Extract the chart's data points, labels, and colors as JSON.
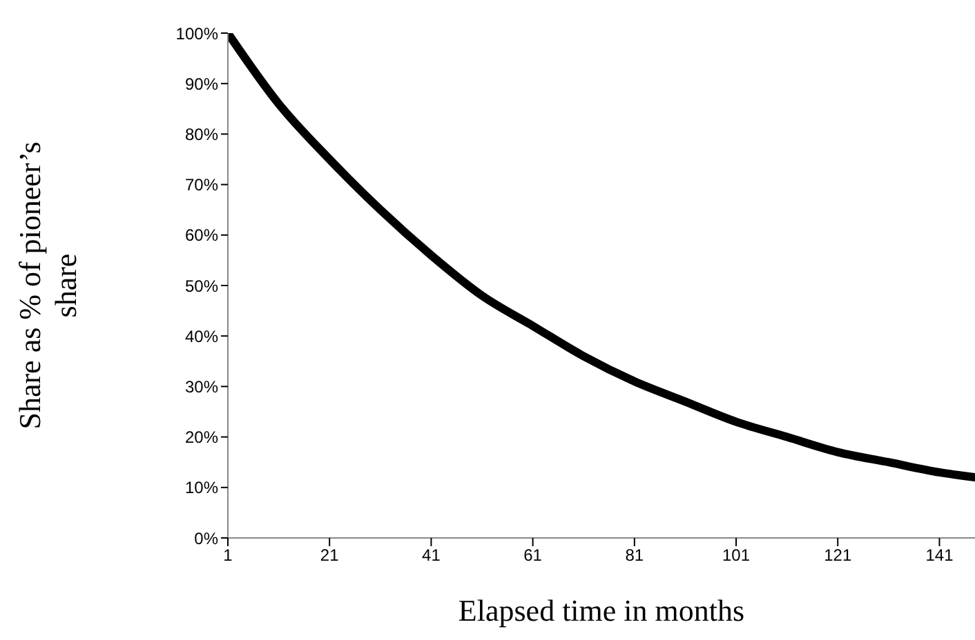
{
  "chart_data": {
    "type": "line",
    "xlabel": "Elapsed time in months",
    "ylabel": "Share as % of pioneer’s share",
    "x": [
      1,
      11,
      21,
      31,
      41,
      51,
      61,
      71,
      81,
      91,
      101,
      111,
      121,
      131,
      141,
      148
    ],
    "series": [
      {
        "color": "#000000",
        "values": [
          100,
          86,
          75,
          65,
          56,
          48,
          42,
          36,
          31,
          27,
          23,
          20,
          17,
          15,
          13,
          12
        ]
      }
    ],
    "xlim": [
      1,
      148
    ],
    "xticks": [
      1,
      21,
      41,
      61,
      81,
      101,
      121,
      141
    ],
    "ylim": [
      0,
      100
    ],
    "yticks": [
      {
        "value": 0,
        "label": "0%"
      },
      {
        "value": 10,
        "label": "10%"
      },
      {
        "value": 20,
        "label": "20%"
      },
      {
        "value": 30,
        "label": "30%"
      },
      {
        "value": 40,
        "label": "40%"
      },
      {
        "value": 50,
        "label": "50%"
      },
      {
        "value": 60,
        "label": "60%"
      },
      {
        "value": 70,
        "label": "70%"
      },
      {
        "value": 80,
        "label": "80%"
      },
      {
        "value": 90,
        "label": "90%"
      },
      {
        "value": 100,
        "label": "100%"
      }
    ],
    "grid": false,
    "legend": false,
    "marker": "none",
    "line_style": "solid"
  }
}
